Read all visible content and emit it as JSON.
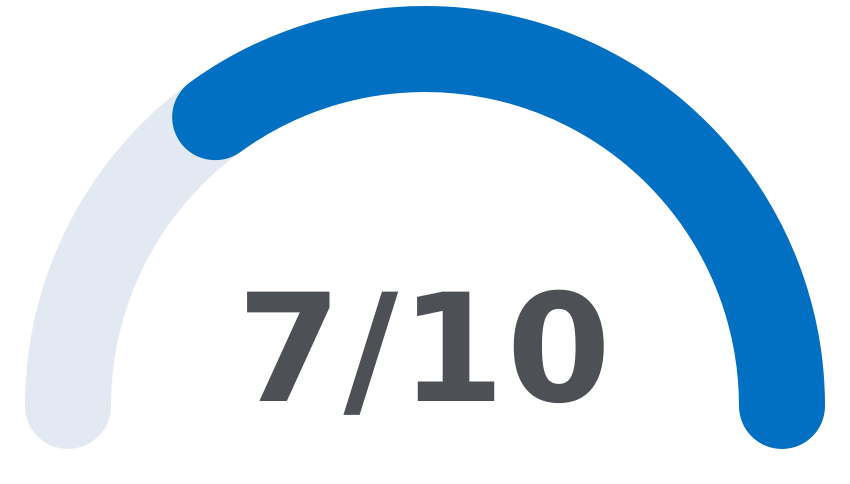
{
  "gauge": {
    "value": 7,
    "max": 10,
    "label": "7/10",
    "colors": {
      "track": "#e3e9f2",
      "fill": "#0270c2",
      "text": "#4d5054"
    }
  }
}
